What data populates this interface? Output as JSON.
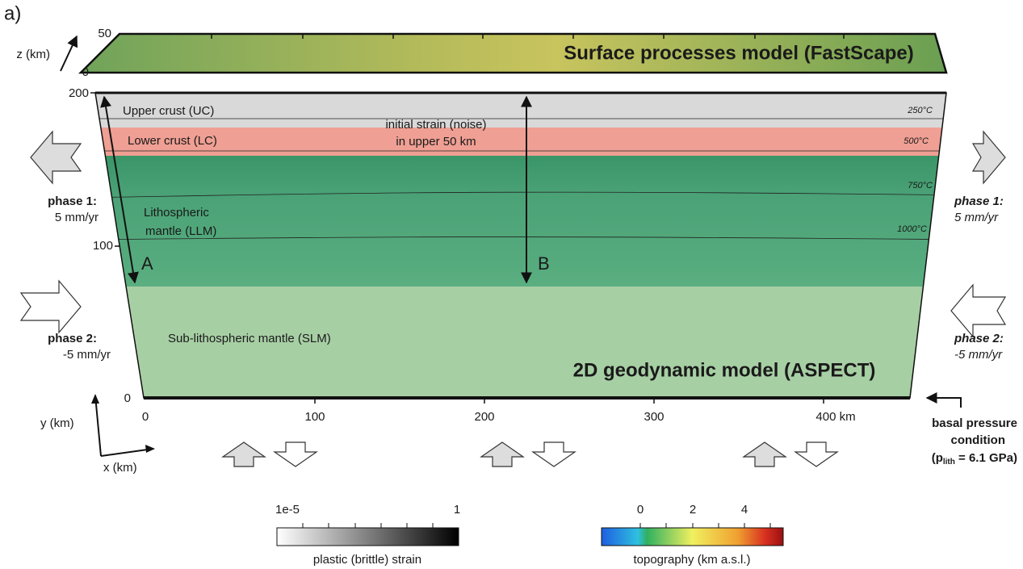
{
  "panel_label": "a)",
  "surface_model": {
    "title": "Surface processes model (FastScape)",
    "z_axis": {
      "label": "z (km)",
      "ticks": [
        "50",
        "0"
      ]
    }
  },
  "geodynamic_model": {
    "title": "2D geodynamic model (ASPECT)",
    "y_axis": {
      "label": "y (km)",
      "ticks": [
        "200",
        "100",
        "0"
      ]
    },
    "x_axis": {
      "label": "x (km)",
      "ticks": [
        "0",
        "100",
        "200",
        "300",
        "400 km"
      ]
    },
    "layers": [
      "Upper crust (UC)",
      "Lower crust (LC)",
      "Lithospheric",
      "mantle (LLM)",
      "Sub-lithospheric mantle (SLM)"
    ],
    "isotherms": [
      "250°C",
      "500°C",
      "750°C",
      "1000°C"
    ],
    "strain_note": [
      "initial strain (noise)",
      "in upper 50 km"
    ],
    "markers": [
      "A",
      "B"
    ]
  },
  "boundary_conditions": {
    "left": {
      "phase1": [
        "phase 1:",
        "5 mm/yr"
      ],
      "phase2": [
        "phase 2:",
        "-5 mm/yr"
      ]
    },
    "right": {
      "phase1": [
        "phase 1:",
        "5 mm/yr"
      ],
      "phase2": [
        "phase 2:",
        "-5 mm/yr"
      ]
    },
    "basal": {
      "lines": [
        "basal pressure",
        "condition"
      ],
      "pressure": {
        "prefix": "(p",
        "subscript": "lith",
        "suffix": " = 6.1 GPa)"
      }
    }
  },
  "colorbars": {
    "strain": {
      "label": "plastic (brittle) strain",
      "ticks": [
        "1e-5",
        "1"
      ]
    },
    "topography": {
      "label": "topography (km a.s.l.)",
      "ticks": [
        "0",
        "2",
        "4"
      ]
    }
  }
}
